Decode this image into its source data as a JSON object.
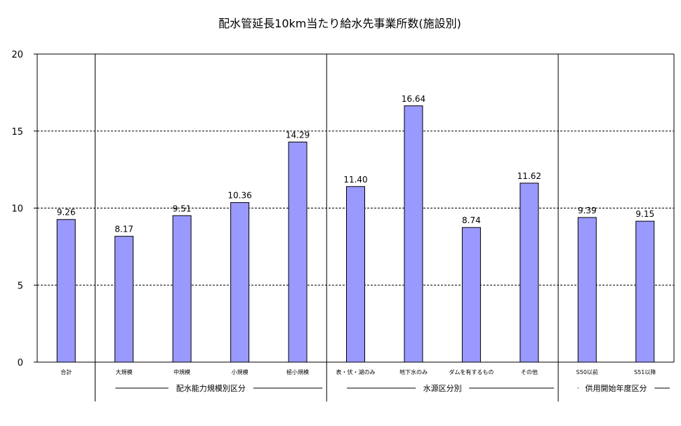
{
  "chart_data": {
    "type": "bar",
    "title": "配水管延長10km当たり給水先事業所数(施設別)",
    "xlabel": "",
    "ylabel": "",
    "ylim": [
      0,
      20
    ],
    "yticks": [
      0,
      5,
      10,
      15,
      20
    ],
    "grid": true,
    "legend": "none",
    "bar_color": "#9999ff",
    "categories": [
      "合計",
      "大規模",
      "中規模",
      "小規模",
      "極小規模",
      "表・伏・湖のみ",
      "地下水のみ",
      "ダムを有するもの",
      "その他",
      "S50以前",
      "S51以降"
    ],
    "values": [
      9.26,
      8.17,
      9.51,
      10.36,
      14.29,
      11.4,
      16.64,
      8.74,
      11.62,
      9.39,
      9.15
    ],
    "value_labels": [
      "9.26",
      "8.17",
      "9.51",
      "10.36",
      "14.29",
      "11.40",
      "16.64",
      "8.74",
      "11.62",
      "9.39",
      "9.15"
    ],
    "groups": [
      {
        "label": "",
        "start": 0,
        "end": 0
      },
      {
        "label": "配水能力規模別区分",
        "start": 1,
        "end": 4
      },
      {
        "label": "水源区分別",
        "start": 5,
        "end": 8
      },
      {
        "label": "供用開始年度区分",
        "start": 9,
        "end": 10
      }
    ]
  }
}
